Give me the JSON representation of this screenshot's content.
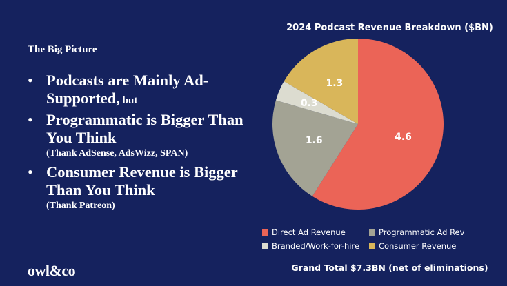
{
  "slide": {
    "section_title": "The Big Picture",
    "bullets": [
      {
        "main": "Podcasts are Mainly Ad-Supported,",
        "small": " but",
        "sub": ""
      },
      {
        "main": "Programmatic is Bigger Than You Think",
        "small": "",
        "sub": "(Thank AdSense, AdsWizz, SPAN)"
      },
      {
        "main": "Consumer Revenue is Bigger Than You Think",
        "small": "",
        "sub": "(Thank Patreon)"
      }
    ],
    "bullet_symbol": "•",
    "logo": "owl&co",
    "grand_total": "Grand Total $7.3BN (net of eliminations)",
    "background_color": "#15225e"
  },
  "chart_data": {
    "type": "pie",
    "title": "2024 Podcast Revenue Breakdown ($BN)",
    "categories": [
      "Direct Ad Revenue",
      "Programmatic Ad Rev",
      "Branded/Work-for-hire",
      "Consumer Revenue"
    ],
    "values": [
      4.6,
      1.6,
      0.3,
      1.3
    ],
    "value_labels": [
      "4.6",
      "1.6",
      "0.3",
      "1.3"
    ],
    "colors": [
      "#eb6457",
      "#a3a394",
      "#dcdcd0",
      "#d9b65a"
    ],
    "legend_position": "bottom",
    "start_angle_deg": 0,
    "direction": "clockwise"
  }
}
